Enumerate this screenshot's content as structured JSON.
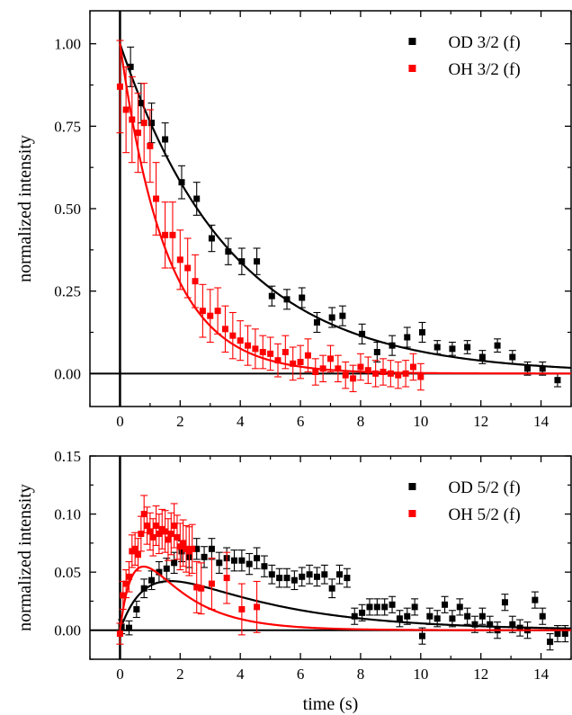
{
  "chart_data": [
    {
      "type": "scatter",
      "xlabel": "",
      "ylabel": "normalized intensity",
      "xlim": [
        -1,
        15
      ],
      "ylim": [
        -0.1,
        1.1
      ],
      "xticks": [
        "0",
        "2",
        "4",
        "6",
        "8",
        "10",
        "12",
        "14"
      ],
      "yticks": [
        "0.00",
        "0.25",
        "0.50",
        "0.75",
        "1.00"
      ],
      "xtick_values": [
        0,
        2,
        4,
        6,
        8,
        10,
        12,
        14
      ],
      "ytick_values": [
        0,
        0.25,
        0.5,
        0.75,
        1.0
      ],
      "legend_position": "top-right",
      "zero_lines": true,
      "series": [
        {
          "name": "OD 3/2 (f)",
          "color": "#000000",
          "fit": {
            "model": "exp_decay",
            "amplitude": 1.0,
            "tau": 3.7
          },
          "points": [
            {
              "x": 0.35,
              "y": 0.93,
              "err": 0.06
            },
            {
              "x": 0.7,
              "y": 0.82,
              "err": 0.06
            },
            {
              "x": 1.05,
              "y": 0.76,
              "err": 0.06
            },
            {
              "x": 1.5,
              "y": 0.71,
              "err": 0.05
            },
            {
              "x": 2.05,
              "y": 0.58,
              "err": 0.05
            },
            {
              "x": 2.55,
              "y": 0.53,
              "err": 0.05
            },
            {
              "x": 3.05,
              "y": 0.41,
              "err": 0.04
            },
            {
              "x": 3.6,
              "y": 0.37,
              "err": 0.04
            },
            {
              "x": 4.05,
              "y": 0.34,
              "err": 0.04
            },
            {
              "x": 4.55,
              "y": 0.34,
              "err": 0.04
            },
            {
              "x": 5.05,
              "y": 0.235,
              "err": 0.03
            },
            {
              "x": 5.55,
              "y": 0.225,
              "err": 0.03
            },
            {
              "x": 6.05,
              "y": 0.23,
              "err": 0.03
            },
            {
              "x": 6.55,
              "y": 0.155,
              "err": 0.03
            },
            {
              "x": 7.05,
              "y": 0.17,
              "err": 0.03
            },
            {
              "x": 7.4,
              "y": 0.175,
              "err": 0.03
            },
            {
              "x": 8.05,
              "y": 0.12,
              "err": 0.03
            },
            {
              "x": 8.55,
              "y": 0.065,
              "err": 0.03
            },
            {
              "x": 9.05,
              "y": 0.085,
              "err": 0.03
            },
            {
              "x": 9.55,
              "y": 0.11,
              "err": 0.03
            },
            {
              "x": 10.05,
              "y": 0.125,
              "err": 0.03
            },
            {
              "x": 10.55,
              "y": 0.08,
              "err": 0.02
            },
            {
              "x": 11.05,
              "y": 0.075,
              "err": 0.02
            },
            {
              "x": 11.55,
              "y": 0.08,
              "err": 0.02
            },
            {
              "x": 12.05,
              "y": 0.05,
              "err": 0.02
            },
            {
              "x": 12.55,
              "y": 0.085,
              "err": 0.02
            },
            {
              "x": 13.05,
              "y": 0.05,
              "err": 0.02
            },
            {
              "x": 13.55,
              "y": 0.015,
              "err": 0.02
            },
            {
              "x": 14.05,
              "y": 0.015,
              "err": 0.02
            },
            {
              "x": 14.55,
              "y": -0.02,
              "err": 0.02
            }
          ]
        },
        {
          "name": "OH 3/2 (f)",
          "color": "#ff0000",
          "fit": {
            "model": "exp_decay",
            "amplitude": 1.0,
            "tau": 1.55
          },
          "points": [
            {
              "x": 0.0,
              "y": 0.87,
              "err": 0.14
            },
            {
              "x": 0.2,
              "y": 0.8,
              "err": 0.13
            },
            {
              "x": 0.4,
              "y": 0.77,
              "err": 0.13
            },
            {
              "x": 0.6,
              "y": 0.73,
              "err": 0.12
            },
            {
              "x": 0.8,
              "y": 0.76,
              "err": 0.12
            },
            {
              "x": 1.0,
              "y": 0.69,
              "err": 0.11
            },
            {
              "x": 1.2,
              "y": 0.53,
              "err": 0.11
            },
            {
              "x": 1.5,
              "y": 0.42,
              "err": 0.1
            },
            {
              "x": 1.75,
              "y": 0.42,
              "err": 0.1
            },
            {
              "x": 2.0,
              "y": 0.345,
              "err": 0.09
            },
            {
              "x": 2.25,
              "y": 0.32,
              "err": 0.09
            },
            {
              "x": 2.5,
              "y": 0.28,
              "err": 0.08
            },
            {
              "x": 2.75,
              "y": 0.19,
              "err": 0.08
            },
            {
              "x": 3.0,
              "y": 0.175,
              "err": 0.08
            },
            {
              "x": 3.25,
              "y": 0.19,
              "err": 0.07
            },
            {
              "x": 3.5,
              "y": 0.135,
              "err": 0.07
            },
            {
              "x": 3.75,
              "y": 0.115,
              "err": 0.07
            },
            {
              "x": 4.0,
              "y": 0.1,
              "err": 0.06
            },
            {
              "x": 4.25,
              "y": 0.085,
              "err": 0.06
            },
            {
              "x": 4.5,
              "y": 0.075,
              "err": 0.06
            },
            {
              "x": 4.75,
              "y": 0.065,
              "err": 0.05
            },
            {
              "x": 5.0,
              "y": 0.06,
              "err": 0.05
            },
            {
              "x": 5.25,
              "y": 0.04,
              "err": 0.05
            },
            {
              "x": 5.5,
              "y": 0.065,
              "err": 0.05
            },
            {
              "x": 5.75,
              "y": 0.03,
              "err": 0.05
            },
            {
              "x": 6.0,
              "y": 0.035,
              "err": 0.05
            },
            {
              "x": 6.25,
              "y": 0.055,
              "err": 0.05
            },
            {
              "x": 6.5,
              "y": 0.005,
              "err": 0.04
            },
            {
              "x": 6.75,
              "y": 0.015,
              "err": 0.04
            },
            {
              "x": 7.0,
              "y": 0.045,
              "err": 0.04
            },
            {
              "x": 7.25,
              "y": 0.015,
              "err": 0.04
            },
            {
              "x": 7.5,
              "y": -0.005,
              "err": 0.04
            },
            {
              "x": 7.75,
              "y": -0.015,
              "err": 0.04
            },
            {
              "x": 8.0,
              "y": 0.02,
              "err": 0.04
            },
            {
              "x": 8.25,
              "y": 0.01,
              "err": 0.04
            },
            {
              "x": 8.5,
              "y": 0.0,
              "err": 0.04
            },
            {
              "x": 8.75,
              "y": 0.005,
              "err": 0.04
            },
            {
              "x": 9.0,
              "y": 0.0,
              "err": 0.04
            },
            {
              "x": 9.25,
              "y": -0.005,
              "err": 0.04
            },
            {
              "x": 9.5,
              "y": 0.0,
              "err": 0.04
            },
            {
              "x": 9.75,
              "y": 0.02,
              "err": 0.04
            },
            {
              "x": 10.0,
              "y": -0.01,
              "err": 0.04
            }
          ]
        }
      ]
    },
    {
      "type": "scatter",
      "xlabel": "time (s)",
      "ylabel": "normalized intensity",
      "xlim": [
        -1,
        15
      ],
      "ylim": [
        -0.025,
        0.15
      ],
      "xticks": [
        "0",
        "2",
        "4",
        "6",
        "8",
        "10",
        "12",
        "14"
      ],
      "yticks": [
        "0.00",
        "0.05",
        "0.10",
        "0.15"
      ],
      "xtick_values": [
        0,
        2,
        4,
        6,
        8,
        10,
        12,
        14
      ],
      "ytick_values": [
        0,
        0.05,
        0.1,
        0.15
      ],
      "legend_position": "top-right",
      "zero_lines": true,
      "series": [
        {
          "name": "OD 5/2 (f)",
          "color": "#000000",
          "fit": {
            "model": "rise_decay",
            "amplitude": 0.088,
            "tau_rise": 0.9,
            "tau_decay": 3.7
          },
          "points": [
            {
              "x": 0.05,
              "y": 0.003,
              "err": 0.006
            },
            {
              "x": 0.3,
              "y": 0.002,
              "err": 0.006
            },
            {
              "x": 0.55,
              "y": 0.018,
              "err": 0.007
            },
            {
              "x": 0.8,
              "y": 0.036,
              "err": 0.008
            },
            {
              "x": 1.05,
              "y": 0.043,
              "err": 0.008
            },
            {
              "x": 1.3,
              "y": 0.05,
              "err": 0.009
            },
            {
              "x": 1.55,
              "y": 0.053,
              "err": 0.009
            },
            {
              "x": 1.8,
              "y": 0.058,
              "err": 0.009
            },
            {
              "x": 2.05,
              "y": 0.068,
              "err": 0.009
            },
            {
              "x": 2.3,
              "y": 0.063,
              "err": 0.009
            },
            {
              "x": 2.55,
              "y": 0.07,
              "err": 0.009
            },
            {
              "x": 2.8,
              "y": 0.063,
              "err": 0.009
            },
            {
              "x": 3.05,
              "y": 0.07,
              "err": 0.009
            },
            {
              "x": 3.3,
              "y": 0.058,
              "err": 0.009
            },
            {
              "x": 3.55,
              "y": 0.062,
              "err": 0.009
            },
            {
              "x": 3.8,
              "y": 0.06,
              "err": 0.009
            },
            {
              "x": 4.05,
              "y": 0.06,
              "err": 0.009
            },
            {
              "x": 4.3,
              "y": 0.057,
              "err": 0.009
            },
            {
              "x": 4.55,
              "y": 0.062,
              "err": 0.009
            },
            {
              "x": 4.8,
              "y": 0.055,
              "err": 0.009
            },
            {
              "x": 5.05,
              "y": 0.048,
              "err": 0.008
            },
            {
              "x": 5.3,
              "y": 0.045,
              "err": 0.008
            },
            {
              "x": 5.55,
              "y": 0.045,
              "err": 0.008
            },
            {
              "x": 5.8,
              "y": 0.043,
              "err": 0.008
            },
            {
              "x": 6.05,
              "y": 0.046,
              "err": 0.008
            },
            {
              "x": 6.3,
              "y": 0.048,
              "err": 0.008
            },
            {
              "x": 6.55,
              "y": 0.046,
              "err": 0.008
            },
            {
              "x": 6.8,
              "y": 0.048,
              "err": 0.008
            },
            {
              "x": 7.05,
              "y": 0.036,
              "err": 0.008
            },
            {
              "x": 7.3,
              "y": 0.048,
              "err": 0.008
            },
            {
              "x": 7.55,
              "y": 0.045,
              "err": 0.008
            },
            {
              "x": 7.8,
              "y": 0.012,
              "err": 0.007
            },
            {
              "x": 8.05,
              "y": 0.015,
              "err": 0.007
            },
            {
              "x": 8.3,
              "y": 0.02,
              "err": 0.007
            },
            {
              "x": 8.55,
              "y": 0.02,
              "err": 0.007
            },
            {
              "x": 8.8,
              "y": 0.02,
              "err": 0.007
            },
            {
              "x": 9.05,
              "y": 0.022,
              "err": 0.007
            },
            {
              "x": 9.3,
              "y": 0.01,
              "err": 0.007
            },
            {
              "x": 9.55,
              "y": 0.012,
              "err": 0.007
            },
            {
              "x": 9.8,
              "y": 0.02,
              "err": 0.007
            },
            {
              "x": 10.05,
              "y": -0.005,
              "err": 0.007
            },
            {
              "x": 10.3,
              "y": 0.012,
              "err": 0.007
            },
            {
              "x": 10.55,
              "y": 0.01,
              "err": 0.007
            },
            {
              "x": 10.8,
              "y": 0.022,
              "err": 0.007
            },
            {
              "x": 11.05,
              "y": 0.01,
              "err": 0.007
            },
            {
              "x": 11.3,
              "y": 0.02,
              "err": 0.007
            },
            {
              "x": 11.55,
              "y": 0.012,
              "err": 0.007
            },
            {
              "x": 11.8,
              "y": 0.005,
              "err": 0.007
            },
            {
              "x": 12.05,
              "y": 0.012,
              "err": 0.007
            },
            {
              "x": 12.3,
              "y": 0.005,
              "err": 0.007
            },
            {
              "x": 12.55,
              "y": 0.0,
              "err": 0.007
            },
            {
              "x": 12.8,
              "y": 0.024,
              "err": 0.007
            },
            {
              "x": 13.05,
              "y": 0.005,
              "err": 0.007
            },
            {
              "x": 13.3,
              "y": 0.002,
              "err": 0.007
            },
            {
              "x": 13.55,
              "y": 0.0,
              "err": 0.007
            },
            {
              "x": 13.8,
              "y": 0.026,
              "err": 0.007
            },
            {
              "x": 14.05,
              "y": 0.012,
              "err": 0.007
            },
            {
              "x": 14.3,
              "y": -0.01,
              "err": 0.007
            },
            {
              "x": 14.55,
              "y": -0.003,
              "err": 0.007
            },
            {
              "x": 14.8,
              "y": -0.003,
              "err": 0.007
            }
          ]
        },
        {
          "name": "OH 5/2 (f)",
          "color": "#ff0000",
          "fit": {
            "model": "rise_decay",
            "amplitude": 0.128,
            "tau_rise": 0.45,
            "tau_decay": 1.55
          },
          "points": [
            {
              "x": 0.0,
              "y": -0.003,
              "err": 0.009
            },
            {
              "x": 0.1,
              "y": 0.03,
              "err": 0.012
            },
            {
              "x": 0.2,
              "y": 0.04,
              "err": 0.012
            },
            {
              "x": 0.3,
              "y": 0.046,
              "err": 0.013
            },
            {
              "x": 0.4,
              "y": 0.068,
              "err": 0.014
            },
            {
              "x": 0.5,
              "y": 0.07,
              "err": 0.014
            },
            {
              "x": 0.6,
              "y": 0.065,
              "err": 0.014
            },
            {
              "x": 0.7,
              "y": 0.083,
              "err": 0.015
            },
            {
              "x": 0.8,
              "y": 0.1,
              "err": 0.016
            },
            {
              "x": 0.9,
              "y": 0.09,
              "err": 0.016
            },
            {
              "x": 1.0,
              "y": 0.085,
              "err": 0.016
            },
            {
              "x": 1.1,
              "y": 0.08,
              "err": 0.016
            },
            {
              "x": 1.2,
              "y": 0.09,
              "err": 0.017
            },
            {
              "x": 1.3,
              "y": 0.083,
              "err": 0.017
            },
            {
              "x": 1.4,
              "y": 0.087,
              "err": 0.017
            },
            {
              "x": 1.5,
              "y": 0.085,
              "err": 0.018
            },
            {
              "x": 1.6,
              "y": 0.078,
              "err": 0.018
            },
            {
              "x": 1.7,
              "y": 0.083,
              "err": 0.018
            },
            {
              "x": 1.8,
              "y": 0.09,
              "err": 0.019
            },
            {
              "x": 1.9,
              "y": 0.08,
              "err": 0.019
            },
            {
              "x": 2.0,
              "y": 0.072,
              "err": 0.02
            },
            {
              "x": 2.1,
              "y": 0.075,
              "err": 0.02
            },
            {
              "x": 2.2,
              "y": 0.07,
              "err": 0.02
            },
            {
              "x": 2.3,
              "y": 0.068,
              "err": 0.021
            },
            {
              "x": 2.4,
              "y": 0.07,
              "err": 0.021
            },
            {
              "x": 2.55,
              "y": 0.037,
              "err": 0.022
            },
            {
              "x": 2.7,
              "y": 0.036,
              "err": 0.022
            },
            {
              "x": 3.05,
              "y": 0.04,
              "err": 0.022
            },
            {
              "x": 3.55,
              "y": 0.045,
              "err": 0.022
            },
            {
              "x": 4.05,
              "y": 0.018,
              "err": 0.022
            },
            {
              "x": 4.55,
              "y": 0.02,
              "err": 0.022
            }
          ]
        }
      ]
    }
  ]
}
